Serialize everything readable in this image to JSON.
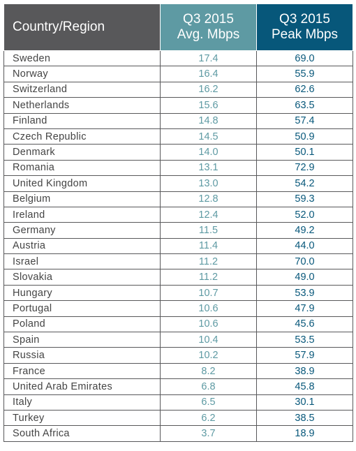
{
  "header": {
    "country": "Country/Region",
    "avg_line1": "Q3 2015",
    "avg_line2": "Avg. Mbps",
    "peak_line1": "Q3 2015",
    "peak_line2": "Peak Mbps"
  },
  "colors": {
    "header_country_bg": "#58585a",
    "header_avg_bg": "#5e9aa3",
    "header_peak_bg": "#07577a",
    "avg_text": "#5e9aa3",
    "peak_text": "#07577a"
  },
  "rows": [
    {
      "country": "Sweden",
      "avg": "17.4",
      "peak": "69.0"
    },
    {
      "country": "Norway",
      "avg": "16.4",
      "peak": "55.9"
    },
    {
      "country": "Switzerland",
      "avg": "16.2",
      "peak": "62.6"
    },
    {
      "country": "Netherlands",
      "avg": "15.6",
      "peak": "63.5"
    },
    {
      "country": "Finland",
      "avg": "14.8",
      "peak": "57.4"
    },
    {
      "country": "Czech Republic",
      "avg": "14.5",
      "peak": "50.9"
    },
    {
      "country": "Denmark",
      "avg": "14.0",
      "peak": "50.1"
    },
    {
      "country": "Romania",
      "avg": "13.1",
      "peak": "72.9"
    },
    {
      "country": "United Kingdom",
      "avg": "13.0",
      "peak": "54.2"
    },
    {
      "country": "Belgium",
      "avg": "12.8",
      "peak": "59.3"
    },
    {
      "country": "Ireland",
      "avg": "12.4",
      "peak": "52.0"
    },
    {
      "country": "Germany",
      "avg": "11.5",
      "peak": "49.2"
    },
    {
      "country": "Austria",
      "avg": "11.4",
      "peak": "44.0"
    },
    {
      "country": "Israel",
      "avg": "11.2",
      "peak": "70.0"
    },
    {
      "country": "Slovakia",
      "avg": "11.2",
      "peak": "49.0"
    },
    {
      "country": "Hungary",
      "avg": "10.7",
      "peak": "53.9"
    },
    {
      "country": "Portugal",
      "avg": "10.6",
      "peak": "47.9"
    },
    {
      "country": "Poland",
      "avg": "10.6",
      "peak": "45.6"
    },
    {
      "country": "Spain",
      "avg": "10.4",
      "peak": "53.5"
    },
    {
      "country": "Russia",
      "avg": "10.2",
      "peak": "57.9"
    },
    {
      "country": "France",
      "avg": "8.2",
      "peak": "38.9"
    },
    {
      "country": "United Arab Emirates",
      "avg": "6.8",
      "peak": "45.8"
    },
    {
      "country": "Italy",
      "avg": "6.5",
      "peak": "30.1"
    },
    {
      "country": "Turkey",
      "avg": "6.2",
      "peak": "38.5"
    },
    {
      "country": "South Africa",
      "avg": "3.7",
      "peak": "18.9"
    }
  ]
}
